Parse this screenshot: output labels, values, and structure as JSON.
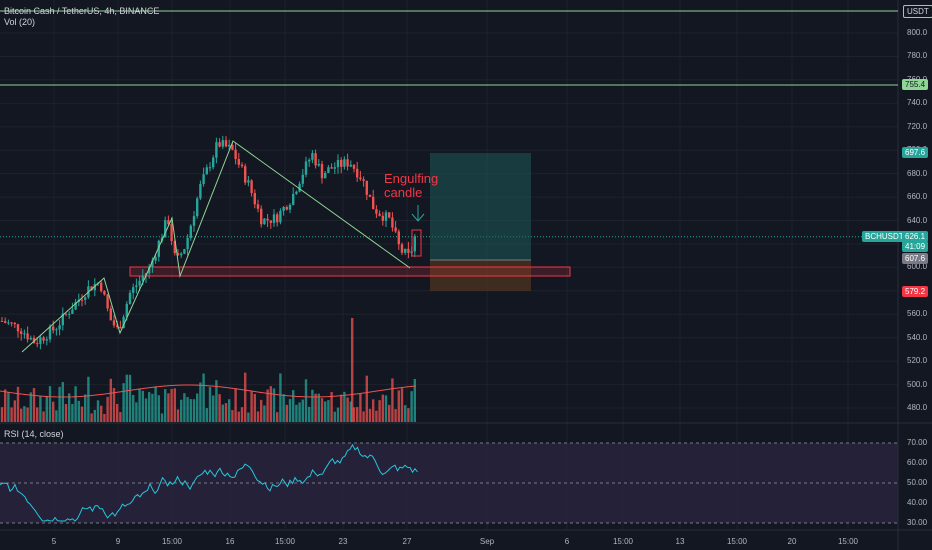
{
  "symbol_line": "Bitcoin Cash / TetherUS, 4h, BINANCE",
  "volume_indicator": "Vol (20)",
  "rsi_indicator": "RSI (14, close)",
  "currency": "USDT",
  "annotation": "Engulfing\ncandle",
  "price_scale": {
    "ticks": [
      "800.0",
      "780.0",
      "760.0",
      "740.0",
      "720.0",
      "700.0",
      "680.0",
      "660.0",
      "640.0",
      "620.0",
      "600.0",
      "580.0",
      "560.0",
      "540.0",
      "520.0",
      "500.0",
      "480.0"
    ]
  },
  "rsi_scale": {
    "ticks": [
      "70.00",
      "60.00",
      "50.00",
      "40.00",
      "30.00"
    ]
  },
  "time_axis": [
    "5",
    "9",
    "15:00",
    "16",
    "15:00",
    "23",
    "27",
    "Sep",
    "6",
    "15:00",
    "13",
    "15:00",
    "20",
    "15:00"
  ],
  "badges": {
    "ticker": "BCHUSDT",
    "last_price": "626.1",
    "countdown": "41:09",
    "target_price": "697.6",
    "entry_price": "607.6",
    "stop_price": "579.2",
    "resistance_line": "755.4"
  },
  "colors": {
    "background": "#131722",
    "up": "#26a69a",
    "down": "#ef5350",
    "trendline": "#8fd694",
    "zone": "#f23645",
    "target_zone": "#1e5a5a",
    "stop_zone": "#5a3a1e",
    "rsi_band": "#2a2440"
  },
  "chart_data": {
    "type": "candlestick",
    "x_categories": [
      "5",
      "9",
      "16",
      "23",
      "27",
      "Sep",
      "6",
      "13",
      "20"
    ],
    "ylim": [
      470,
      812
    ],
    "horizontal_lines": [
      755.4,
      812
    ],
    "demand_zone": [
      602,
      596
    ],
    "long_position": {
      "entry": 607.6,
      "target": 697.6,
      "stop": 579.2
    },
    "last": 626.1,
    "rsi": {
      "ylim": [
        28,
        74
      ],
      "bands": [
        70,
        50,
        30
      ]
    }
  }
}
